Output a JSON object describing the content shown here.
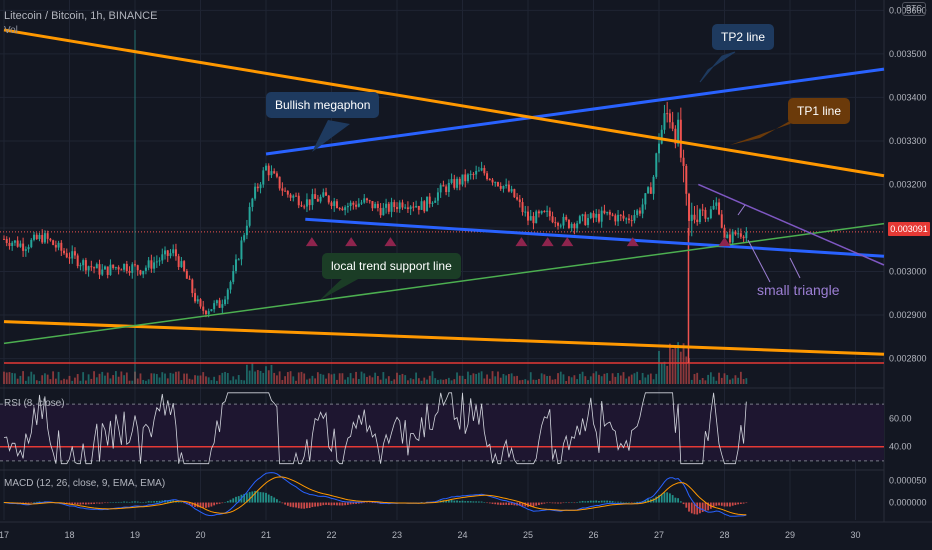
{
  "header": {
    "symbol_title": "Litecoin / Bitcoin, 1h, BINANCE",
    "vol_label": "Vol",
    "currency_badge": "BTC",
    "price_badge": "0.003091"
  },
  "panes": {
    "rsi_label": "RSI (8, close)",
    "macd_label": "MACD (12, 26, close, 9, EMA, EMA)"
  },
  "annotations": {
    "bullish_megaphon": "Bullish megaphon",
    "tp2": "TP2 line",
    "tp1": "TP1 line",
    "support": "local trend support line",
    "small_triangle": "small triangle"
  },
  "colors": {
    "background": "#131722",
    "up_candle": "#26a69a",
    "down_candle": "#ef5350",
    "megaphon_line": "#2962ff",
    "tp1_line": "#ff9800",
    "support_line": "#4caf50",
    "triangle_line": "#7e57c2",
    "callout_blue": "#1e3a5f",
    "callout_brown": "#6b3a0a",
    "callout_green": "#1b3d26"
  },
  "chart_data": [
    {
      "type": "candlestick",
      "x_axis": {
        "tick_labels": [
          "17",
          "18",
          "19",
          "20",
          "21",
          "22",
          "23",
          "24",
          "25",
          "26",
          "27",
          "28",
          "29",
          "30"
        ]
      },
      "y_axis": {
        "tick_labels": [
          "0.002800",
          "0.002900",
          "0.003000",
          "0.003100",
          "0.003200",
          "0.003300",
          "0.003400",
          "0.003500",
          "0.003600"
        ],
        "range": [
          0.00276,
          0.00361
        ]
      },
      "last_price": 0.003091,
      "price_path": [
        [
          17.0,
          0.003075
        ],
        [
          17.3,
          0.00306
        ],
        [
          17.6,
          0.00308
        ],
        [
          17.9,
          0.003045
        ],
        [
          18.2,
          0.00302
        ],
        [
          18.5,
          0.003
        ],
        [
          18.8,
          0.003015
        ],
        [
          19.1,
          0.003005
        ],
        [
          19.4,
          0.00303
        ],
        [
          19.6,
          0.003045
        ],
        [
          19.8,
          0.00298
        ],
        [
          20.0,
          0.00291
        ],
        [
          20.3,
          0.002925
        ],
        [
          20.5,
          0.00299
        ],
        [
          20.8,
          0.00317
        ],
        [
          21.0,
          0.00324
        ],
        [
          21.3,
          0.00318
        ],
        [
          21.6,
          0.00316
        ],
        [
          21.9,
          0.00317
        ],
        [
          22.2,
          0.00315
        ],
        [
          22.5,
          0.00316
        ],
        [
          22.8,
          0.00314
        ],
        [
          23.1,
          0.00316
        ],
        [
          23.4,
          0.00315
        ],
        [
          23.7,
          0.00319
        ],
        [
          24.0,
          0.00321
        ],
        [
          24.3,
          0.00323
        ],
        [
          24.6,
          0.0032
        ],
        [
          24.8,
          0.00317
        ],
        [
          25.0,
          0.00312
        ],
        [
          25.3,
          0.00313
        ],
        [
          25.6,
          0.00311
        ],
        [
          25.9,
          0.00312
        ],
        [
          26.2,
          0.00313
        ],
        [
          26.5,
          0.00312
        ],
        [
          26.7,
          0.00314
        ],
        [
          26.9,
          0.0032
        ],
        [
          27.0,
          0.00331
        ],
        [
          27.15,
          0.00337
        ],
        [
          27.3,
          0.00331
        ],
        [
          27.45,
          0.0031
        ],
        [
          27.6,
          0.00315
        ],
        [
          27.75,
          0.00313
        ],
        [
          27.9,
          0.00316
        ],
        [
          28.0,
          0.00307
        ],
        [
          28.2,
          0.00309
        ],
        [
          28.35,
          0.003091
        ]
      ],
      "drawings": [
        {
          "name": "megaphon upper / TP2 line",
          "from": [
            21.0,
            0.00327
          ],
          "to": [
            31.0,
            0.003465
          ]
        },
        {
          "name": "megaphon lower",
          "from": [
            21.6,
            0.00312
          ],
          "to": [
            31.0,
            0.003035
          ]
        },
        {
          "name": "TP1 line (orange resistance)",
          "from": [
            17.0,
            0.003555
          ],
          "to": [
            31.0,
            0.00322
          ]
        },
        {
          "name": "lower orange line",
          "from": [
            17.0,
            0.002885
          ],
          "to": [
            31.0,
            0.00281
          ]
        },
        {
          "name": "local trend support line",
          "from": [
            17.0,
            0.002835
          ],
          "to": [
            31.0,
            0.00311
          ]
        },
        {
          "name": "small triangle top",
          "from": [
            27.6,
            0.0032
          ],
          "to": [
            31.0,
            0.003015
          ]
        },
        {
          "name": "horizontal red level",
          "from": [
            17.0,
            0.00279
          ],
          "to": [
            31.0,
            0.00279
          ]
        }
      ],
      "markers": [
        21.7,
        22.3,
        22.9,
        24.9,
        25.3,
        25.6,
        26.6,
        28.0
      ]
    },
    {
      "type": "line",
      "name": "RSI (8, close)",
      "y_axis": {
        "tick_labels": [
          "40.00",
          "60.00"
        ],
        "range": [
          25,
          80
        ]
      },
      "bands": [
        30,
        70
      ],
      "level_line": 40
    },
    {
      "type": "line",
      "name": "MACD (12, 26, close, 9, EMA, EMA)",
      "y_axis": {
        "tick_labels": [
          "0.000000",
          "0.000050"
        ],
        "range": [
          -4e-05,
          7e-05
        ]
      }
    }
  ]
}
